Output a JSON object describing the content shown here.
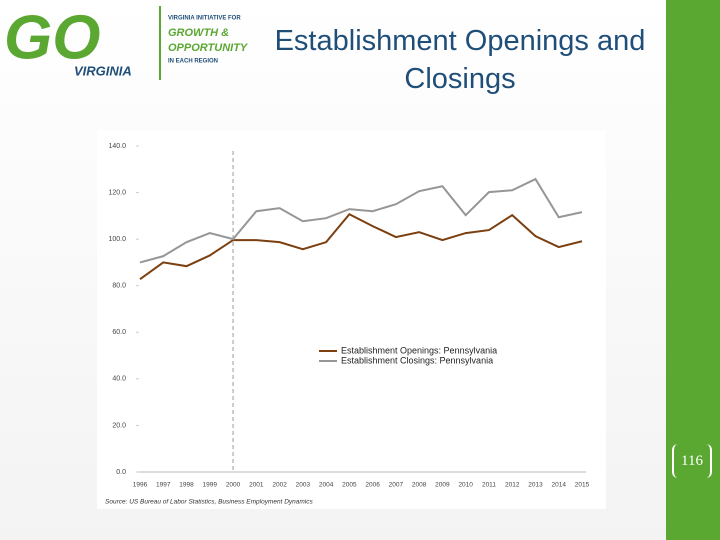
{
  "logo": {
    "mark": "GO",
    "state": "VIRGINIA",
    "line1": "VIRGINIA INITIATIVE FOR",
    "line2": "GROWTH &",
    "line3": "OPPORTUNITY",
    "line4": "IN EACH REGION"
  },
  "title": "Establishment Openings and Closings",
  "page_number": "116",
  "chart_data": {
    "type": "line",
    "categories": [
      "1996",
      "1997",
      "1998",
      "1999",
      "2000",
      "2001",
      "2002",
      "2003",
      "2004",
      "2005",
      "2006",
      "2007",
      "2008",
      "2009",
      "2010",
      "2011",
      "2012",
      "2013",
      "2014",
      "2015"
    ],
    "series": [
      {
        "name": "Establishment Openings: Pennsylvania",
        "color": "#7b3f10",
        "values": [
          82.8,
          90.0,
          88.4,
          93.0,
          99.6,
          99.6,
          98.7,
          95.7,
          98.7,
          110.7,
          105.6,
          100.9,
          103.0,
          99.6,
          102.6,
          103.9,
          110.3,
          101.3,
          96.6,
          99.1
        ]
      },
      {
        "name": "Establishment Closings: Pennsylvania",
        "color": "#969696",
        "values": [
          90.0,
          92.7,
          98.7,
          102.6,
          100.0,
          112.0,
          113.3,
          107.7,
          109.0,
          112.9,
          112.0,
          115.0,
          120.6,
          122.7,
          110.3,
          120.2,
          121.0,
          125.8,
          109.4,
          111.6
        ]
      }
    ],
    "ylim": [
      0,
      140
    ],
    "yticks": [
      {
        "value": 0,
        "label": "0.0"
      },
      {
        "value": 20,
        "label": "20.0"
      },
      {
        "value": 40,
        "label": "40.0"
      },
      {
        "value": 60,
        "label": "60.0"
      },
      {
        "value": 80,
        "label": "80.0"
      },
      {
        "value": 100,
        "label": "100.0"
      },
      {
        "value": 120,
        "label": "120.0"
      },
      {
        "value": 140,
        "label": "140.0"
      }
    ],
    "grid": false,
    "legend": "center-right",
    "source": "Source: US Bureau of Labor Statistics, Business Employment Dynamics"
  }
}
